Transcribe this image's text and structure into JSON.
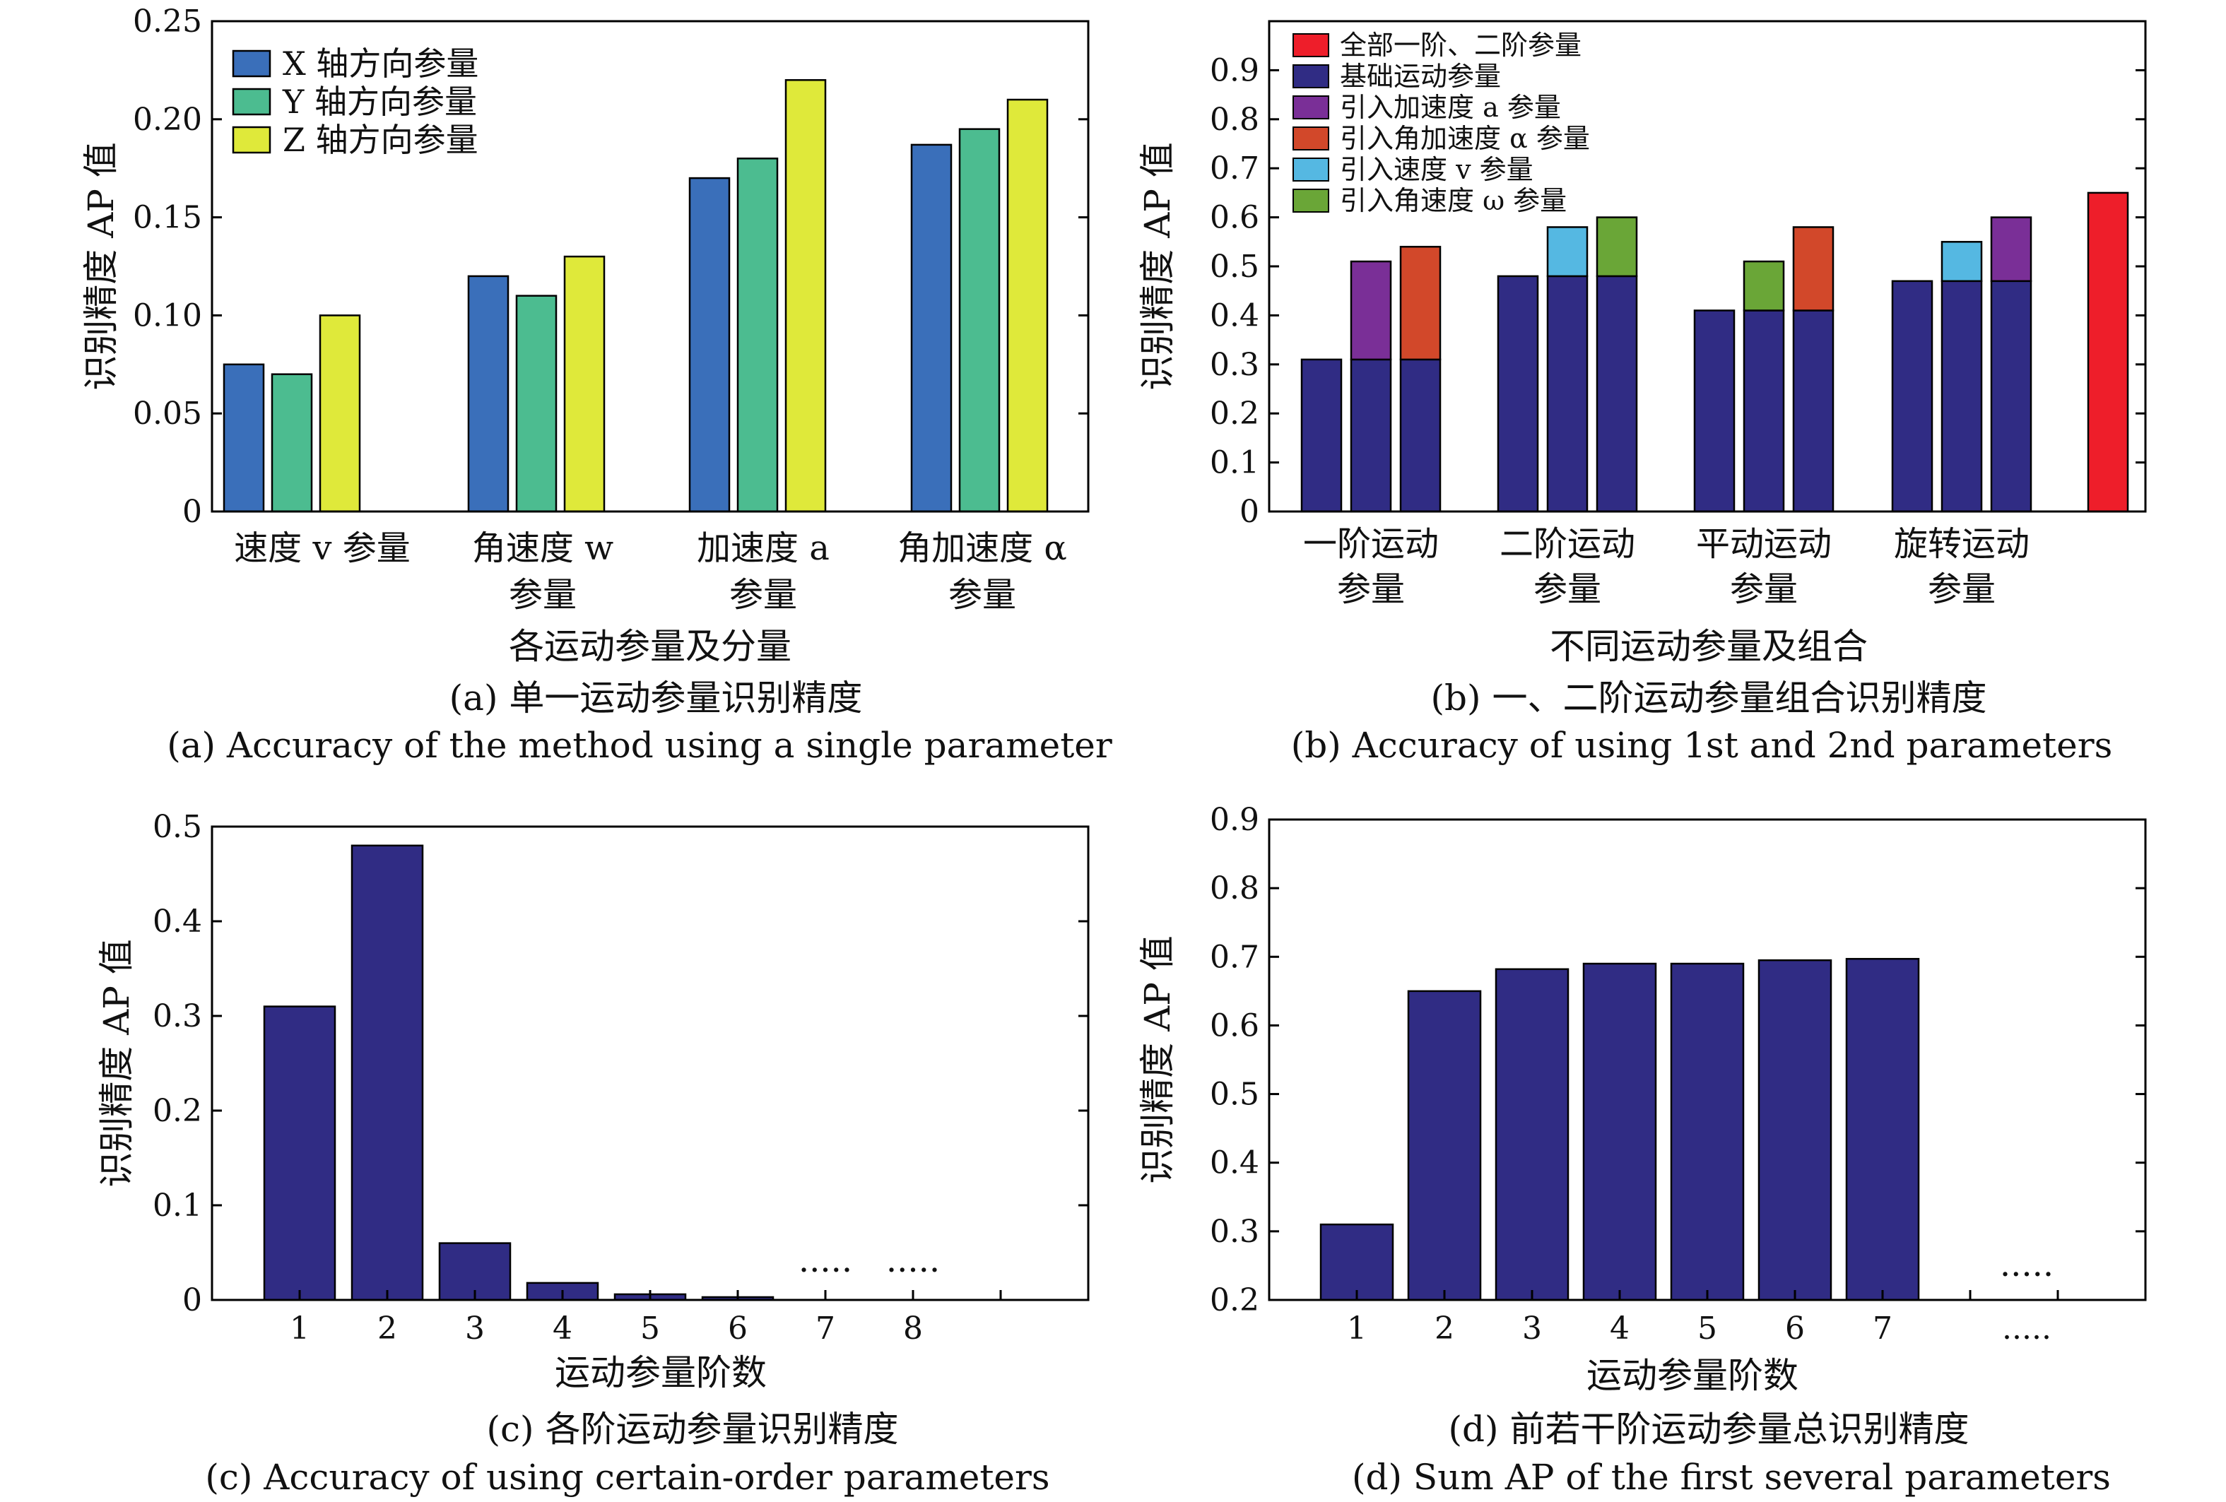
{
  "colors": {
    "x_axis": "#3a6fba",
    "y_axis": "#4cbc90",
    "z_axis": "#dfe93a",
    "base": "#302c84",
    "all": "#ee1e2a",
    "accel": "#7a2f97",
    "ang_accel": "#d2482a",
    "vel": "#55b8e2",
    "ang_vel": "#6aa637"
  },
  "chart_data": [
    {
      "type": "bar",
      "ylabel": "识别精度 AP 值",
      "xlabel": "各运动参量及分量",
      "caption_cn": "(a) 单一运动参量识别精度",
      "caption_en": "(a) Accuracy of the method using a single parameter",
      "ylim": [
        0,
        0.25
      ],
      "yticks": [
        "0",
        "0.05",
        "0.10",
        "0.15",
        "0.20",
        "0.25"
      ],
      "categories": [
        [
          "速度 v 参量"
        ],
        [
          "角速度 w",
          "参量"
        ],
        [
          "加速度 a",
          "参量"
        ],
        [
          "角加速度 α",
          "参量"
        ]
      ],
      "series": [
        {
          "name": "X 轴方向参量",
          "values": [
            0.075,
            0.12,
            0.17,
            0.187
          ]
        },
        {
          "name": "Y 轴方向参量",
          "values": [
            0.07,
            0.11,
            0.18,
            0.195
          ]
        },
        {
          "name": "Z 轴方向参量",
          "values": [
            0.1,
            0.13,
            0.22,
            0.21
          ]
        }
      ],
      "legend": "top-left"
    },
    {
      "type": "bar",
      "ylabel": "识别精度 AP 值",
      "xlabel": "不同运动参量及组合",
      "caption_cn": "(b) 一、二阶运动参量组合识别精度",
      "caption_en": "(b) Accuracy of using 1st and 2nd parameters",
      "ylim": [
        0,
        1.0
      ],
      "yticks": [
        "0",
        "0.1",
        "0.2",
        "0.3",
        "0.4",
        "0.5",
        "0.6",
        "0.7",
        "0.8",
        "0.9"
      ],
      "categories": [
        [
          "一阶运动",
          "参量"
        ],
        [
          "二阶运动",
          "参量"
        ],
        [
          "平动运动",
          "参量"
        ],
        [
          "旋转运动",
          "参量"
        ]
      ],
      "legend_entries": [
        "全部一阶、二阶参量",
        "基础运动参量",
        "引入加速度 a 参量",
        "引入角加速度 α 参量",
        "引入速度 v 参量",
        "引入角速度 ω 参量"
      ],
      "groups": [
        [
          {
            "base": 0.31,
            "add": 0,
            "add_series": ""
          },
          {
            "base": 0.31,
            "add": 0.2,
            "add_series": "引入加速度 a 参量"
          },
          {
            "base": 0.31,
            "add": 0.23,
            "add_series": "引入角加速度 α 参量"
          }
        ],
        [
          {
            "base": 0.48,
            "add": 0,
            "add_series": ""
          },
          {
            "base": 0.48,
            "add": 0.1,
            "add_series": "引入速度 v 参量"
          },
          {
            "base": 0.48,
            "add": 0.12,
            "add_series": "引入角速度 ω 参量"
          }
        ],
        [
          {
            "base": 0.41,
            "add": 0,
            "add_series": ""
          },
          {
            "base": 0.41,
            "add": 0.1,
            "add_series": "引入角速度 ω 参量"
          },
          {
            "base": 0.41,
            "add": 0.17,
            "add_series": "引入角加速度 α 参量"
          }
        ],
        [
          {
            "base": 0.47,
            "add": 0,
            "add_series": ""
          },
          {
            "base": 0.47,
            "add": 0.08,
            "add_series": "引入速度 v 参量"
          },
          {
            "base": 0.47,
            "add": 0.13,
            "add_series": "引入加速度 a 参量"
          }
        ]
      ],
      "all_value": 0.65
    },
    {
      "type": "bar",
      "ylabel": "识别精度 AP 值",
      "xlabel": "运动参量阶数",
      "caption_cn": "(c) 各阶运动参量识别精度",
      "caption_en": "(c) Accuracy of using certain-order parameters",
      "ylim": [
        0,
        0.5
      ],
      "yticks": [
        "0",
        "0.1",
        "0.2",
        "0.3",
        "0.4",
        "0.5"
      ],
      "categories": [
        "1",
        "2",
        "3",
        "4",
        "5",
        "6",
        "7",
        "8"
      ],
      "values": [
        0.31,
        0.48,
        0.06,
        0.018,
        0.006,
        0.003,
        null,
        null
      ],
      "ellipsis": "....."
    },
    {
      "type": "bar",
      "ylabel": "识别精度 AP 值",
      "xlabel": "运动参量阶数",
      "caption_cn": "(d) 前若干阶运动参量总识别精度",
      "caption_en": "(d) Sum AP of the first several parameters",
      "ylim": [
        0.2,
        0.9
      ],
      "yticks": [
        "0.2",
        "0.3",
        "0.4",
        "0.5",
        "0.6",
        "0.7",
        "0.8",
        "0.9"
      ],
      "categories": [
        "1",
        "2",
        "3",
        "4",
        "5",
        "6",
        "7",
        "....."
      ],
      "values": [
        0.31,
        0.65,
        0.682,
        0.69,
        0.69,
        0.695,
        0.697,
        null
      ],
      "ellipsis": "....."
    }
  ]
}
